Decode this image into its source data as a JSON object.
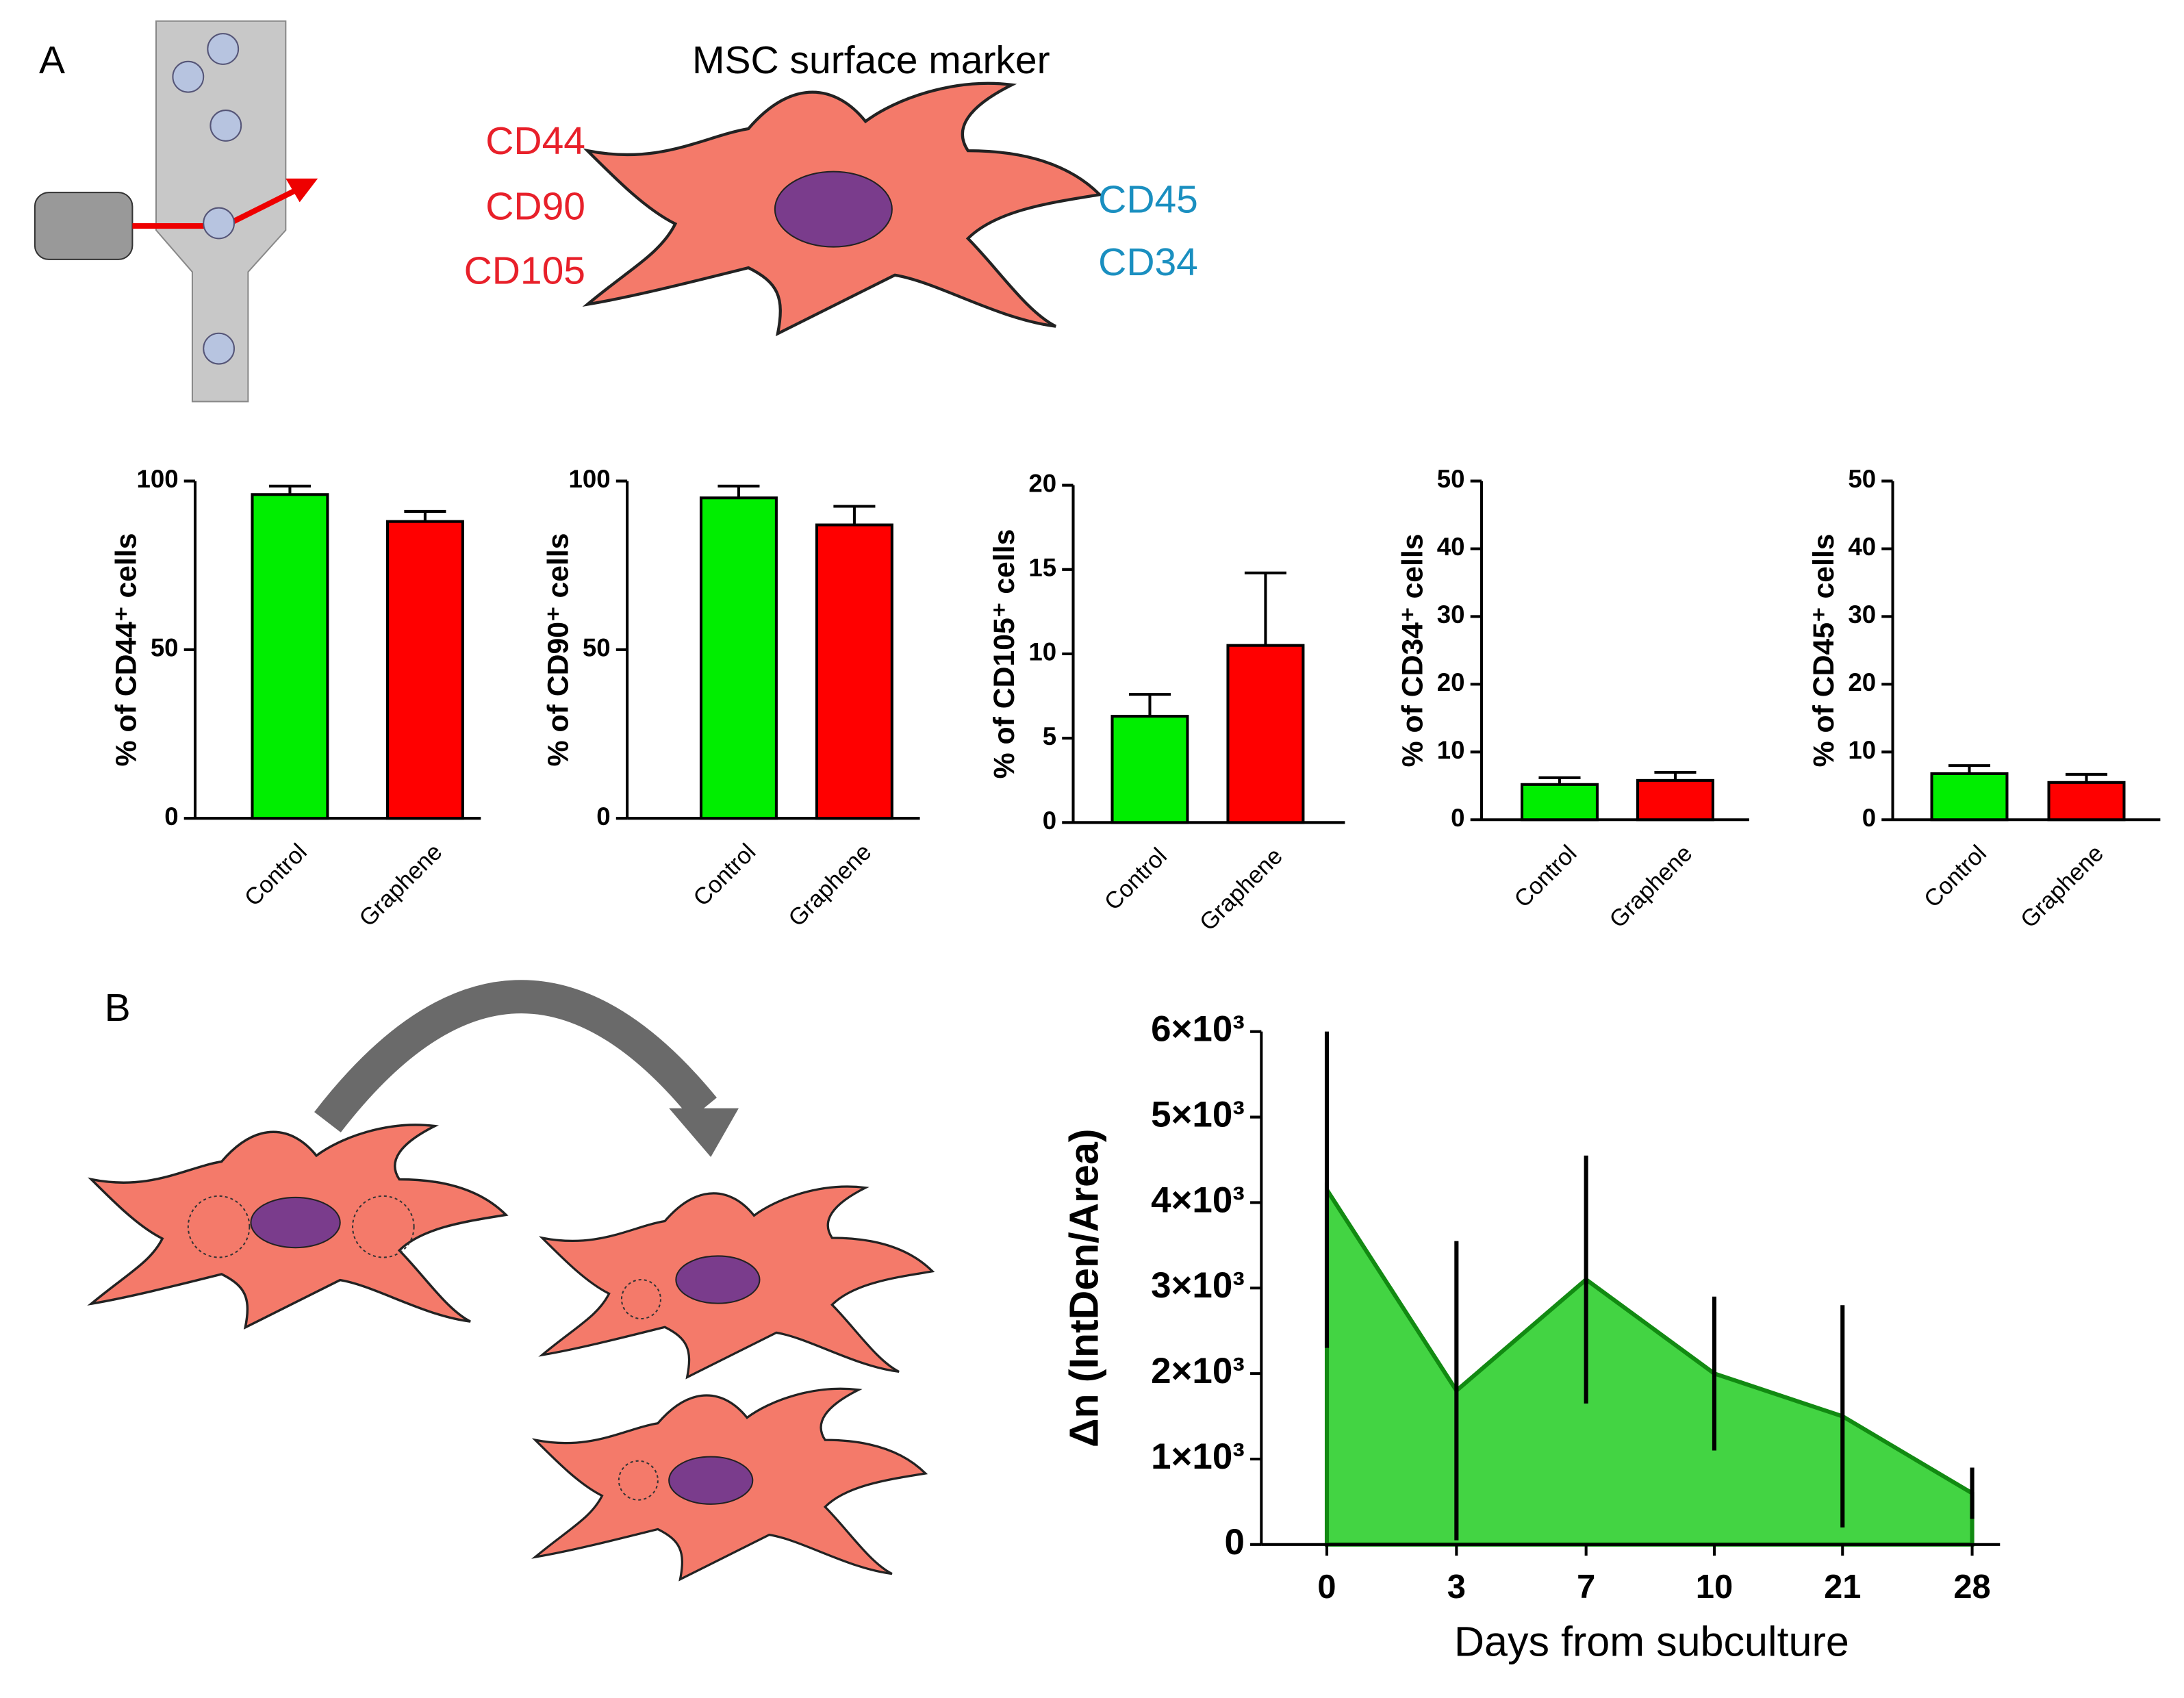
{
  "panel_labels": [
    "A",
    "B"
  ],
  "diagram": {
    "title": "MSC surface marker",
    "positive_markers": [
      "CD44",
      "CD90",
      "CD105"
    ],
    "negative_markers": [
      "CD45",
      "CD34"
    ]
  },
  "chart_data": [
    {
      "type": "bar",
      "ylabel": "% of CD44⁺ cells",
      "categories": [
        "Control",
        "Graphene"
      ],
      "values": [
        96,
        88
      ],
      "errors": [
        2.5,
        3
      ],
      "colors": [
        "#00ee00",
        "#ff0000"
      ],
      "ylim": [
        0,
        100
      ],
      "yticks": [
        0,
        50,
        100
      ]
    },
    {
      "type": "bar",
      "ylabel": "% of CD90⁺ cells",
      "categories": [
        "Control",
        "Graphene"
      ],
      "values": [
        95,
        87
      ],
      "errors": [
        3.5,
        5.5
      ],
      "colors": [
        "#00ee00",
        "#ff0000"
      ],
      "ylim": [
        0,
        100
      ],
      "yticks": [
        0,
        50,
        100
      ]
    },
    {
      "type": "bar",
      "ylabel": "% of CD105⁺ cells",
      "categories": [
        "Control",
        "Graphene"
      ],
      "values": [
        6.3,
        10.5
      ],
      "errors": [
        1.3,
        4.3
      ],
      "colors": [
        "#00ee00",
        "#ff0000"
      ],
      "ylim": [
        0,
        20
      ],
      "yticks": [
        0,
        5,
        10,
        15,
        20
      ]
    },
    {
      "type": "bar",
      "ylabel": "% of CD34⁺ cells",
      "categories": [
        "Control",
        "Graphene"
      ],
      "values": [
        5.2,
        5.8
      ],
      "errors": [
        1,
        1.2
      ],
      "colors": [
        "#00ee00",
        "#ff0000"
      ],
      "ylim": [
        0,
        50
      ],
      "yticks": [
        0,
        10,
        20,
        30,
        40,
        50
      ]
    },
    {
      "type": "bar",
      "ylabel": "% of CD45⁺ cells",
      "categories": [
        "Control",
        "Graphene"
      ],
      "values": [
        6.8,
        5.5
      ],
      "errors": [
        1.2,
        1.2
      ],
      "colors": [
        "#00ee00",
        "#ff0000"
      ],
      "ylim": [
        0,
        50
      ],
      "yticks": [
        0,
        10,
        20,
        30,
        40,
        50
      ]
    },
    {
      "type": "area",
      "xlabel": "Days from subculture",
      "ylabel": "Δn (IntDen/Area)",
      "categories": [
        "0",
        "3",
        "7",
        "10",
        "21",
        "28"
      ],
      "values": [
        4150,
        1800,
        3100,
        2000,
        1500,
        600
      ],
      "errors": [
        1850,
        1750,
        1450,
        900,
        1300,
        300
      ],
      "color": "#22cc22",
      "ylim": [
        0,
        6000
      ],
      "yticks": [
        0,
        {
          "value": 1000,
          "label": "1×10³"
        },
        {
          "value": 2000,
          "label": "2×10³"
        },
        {
          "value": 3000,
          "label": "3×10³"
        },
        {
          "value": 4000,
          "label": "4×10³"
        },
        {
          "value": 5000,
          "label": "5×10³"
        },
        {
          "value": 6000,
          "label": "6×10³"
        }
      ]
    }
  ]
}
